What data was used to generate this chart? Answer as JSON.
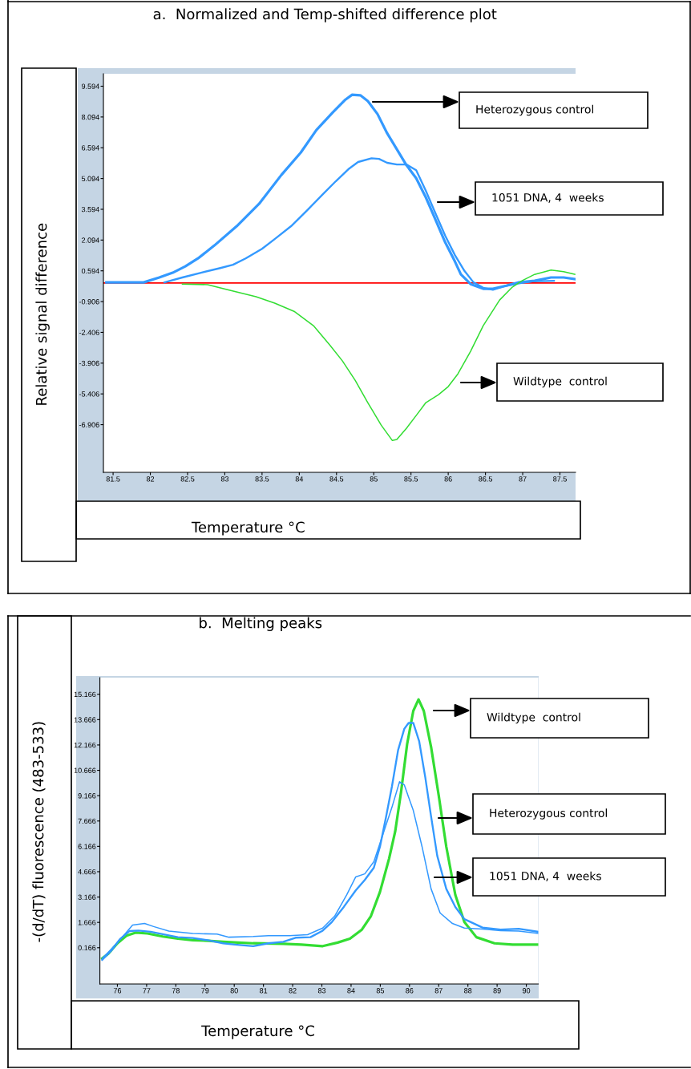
{
  "chart_data": [
    {
      "type": "line",
      "title": "a.  Normalized and Temp-shifted difference plot",
      "xlabel": "Temperature °C",
      "ylabel": "Relative signal difference",
      "xlim": [
        81.37,
        87.71
      ],
      "ylim": [
        -9.23,
        10.2
      ],
      "xticks": [
        81.5,
        82,
        82.5,
        83,
        83.5,
        84,
        84.5,
        85,
        85.5,
        86,
        86.5,
        87,
        87.5
      ],
      "yticks": [
        9.594,
        8.094,
        6.594,
        5.094,
        3.594,
        2.094,
        0.594,
        -0.906,
        -2.406,
        -3.906,
        -5.406,
        -6.906
      ],
      "grid": false,
      "ref_lines": [
        {
          "axis": "y",
          "value": 0,
          "color": "#ff0000"
        }
      ],
      "series": [
        {
          "color": "#3399ff",
          "x": [
            81.41,
            81.65,
            81.91,
            82.12,
            82.3,
            82.47,
            82.64,
            82.86,
            83.16,
            83.46,
            83.76,
            84.02,
            84.23,
            84.45,
            84.62,
            84.71,
            84.82,
            84.92,
            85.05,
            85.18,
            85.31,
            85.44,
            85.57,
            85.7,
            85.83,
            85.96,
            86.09,
            86.17,
            86.3,
            86.47,
            86.6,
            86.78,
            86.95,
            87.16,
            87.38,
            87.55,
            87.7
          ],
          "values": [
            0.03,
            0.03,
            0.03,
            0.27,
            0.5,
            0.81,
            1.2,
            1.83,
            2.77,
            3.86,
            5.27,
            6.36,
            7.46,
            8.32,
            8.94,
            9.18,
            9.15,
            8.87,
            8.24,
            7.3,
            6.52,
            5.74,
            5.11,
            4.17,
            3.08,
            1.98,
            1.05,
            0.42,
            -0.05,
            -0.28,
            -0.28,
            -0.13,
            0.03,
            0.11,
            0.27,
            0.27,
            0.19
          ]
        },
        {
          "color": "#3399ff",
          "x": [
            82.19,
            82.43,
            82.68,
            82.94,
            83.11,
            83.28,
            83.5,
            83.67,
            83.89,
            84.11,
            84.32,
            84.49,
            84.67,
            84.79,
            84.97,
            85.07,
            85.18,
            85.31,
            85.44,
            85.57,
            85.7,
            85.83,
            85.96,
            86.09,
            86.22,
            86.34,
            86.47,
            86.6,
            86.78,
            86.95,
            87.12,
            87.42
          ],
          "values": [
            0.03,
            0.27,
            0.5,
            0.73,
            0.89,
            1.2,
            1.67,
            2.14,
            2.77,
            3.56,
            4.34,
            4.96,
            5.58,
            5.9,
            6.08,
            6.05,
            5.86,
            5.78,
            5.78,
            5.5,
            4.49,
            3.39,
            2.3,
            1.36,
            0.58,
            0.03,
            -0.23,
            -0.33,
            -0.13,
            -0.02,
            0.08,
            0.11
          ]
        },
        {
          "color": "#33dd33",
          "x": [
            82.43,
            82.77,
            83.07,
            83.42,
            83.67,
            83.93,
            84.19,
            84.41,
            84.58,
            84.75,
            84.92,
            85.1,
            85.25,
            85.31,
            85.44,
            85.57,
            85.7,
            85.87,
            86.0,
            86.13,
            86.3,
            86.47,
            86.69,
            86.86,
            86.99,
            87.16,
            87.38,
            87.55,
            87.7
          ],
          "values": [
            -0.05,
            -0.08,
            -0.36,
            -0.67,
            -0.98,
            -1.38,
            -2.08,
            -3.02,
            -3.8,
            -4.74,
            -5.83,
            -6.93,
            -7.68,
            -7.63,
            -7.08,
            -6.46,
            -5.83,
            -5.44,
            -5.05,
            -4.43,
            -3.33,
            -2.08,
            -0.83,
            -0.2,
            0.11,
            0.42,
            0.63,
            0.55,
            0.42
          ]
        }
      ],
      "annotations": [
        "Heterozygous control",
        "1051 DNA, 4  weeks",
        "Wildtype  control"
      ]
    },
    {
      "type": "line",
      "title": "b.  Melting peaks",
      "xlabel": "Temperature °C",
      "ylabel": "-(d/dT) fluorescence (483-533)",
      "xlim": [
        75.4,
        90.41
      ],
      "ylim": [
        -1.98,
        16.15
      ],
      "xticks": [
        76,
        77,
        78,
        79,
        80,
        81,
        82,
        83,
        84,
        85,
        86,
        87,
        88,
        89,
        90
      ],
      "yticks": [
        15.166,
        13.666,
        12.166,
        10.666,
        9.166,
        7.666,
        6.166,
        4.666,
        3.166,
        1.666,
        0.166
      ],
      "grid": false,
      "series": [
        {
          "color": "#33dd33",
          "x": [
            75.48,
            75.69,
            76.0,
            76.31,
            76.62,
            77.03,
            77.55,
            78.07,
            78.58,
            79.1,
            79.62,
            80.13,
            80.65,
            81.68,
            82.3,
            83.03,
            83.54,
            83.96,
            84.37,
            84.68,
            84.99,
            85.3,
            85.51,
            85.71,
            85.92,
            86.13,
            86.31,
            86.49,
            86.74,
            87.0,
            87.26,
            87.57,
            87.88,
            88.29,
            88.91,
            89.53,
            90.41
          ],
          "values": [
            -0.46,
            -0.19,
            0.43,
            0.88,
            1.06,
            1.01,
            0.83,
            0.7,
            0.61,
            0.58,
            0.52,
            0.47,
            0.43,
            0.4,
            0.35,
            0.26,
            0.47,
            0.7,
            1.24,
            2.04,
            3.47,
            5.43,
            7.04,
            9.36,
            12.22,
            14.18,
            14.86,
            14.18,
            12.04,
            9.18,
            6.15,
            3.29,
            1.69,
            0.79,
            0.43,
            0.35,
            0.35
          ]
        },
        {
          "color": "#3399ff",
          "x": [
            75.48,
            75.79,
            76.1,
            76.41,
            76.72,
            77.14,
            77.55,
            78.07,
            78.58,
            79.1,
            79.62,
            80.03,
            80.65,
            81.17,
            81.68,
            82.1,
            82.61,
            83.03,
            83.34,
            83.75,
            84.16,
            84.47,
            84.78,
            84.99,
            85.2,
            85.4,
            85.61,
            85.82,
            85.97,
            86.13,
            86.33,
            86.54,
            86.74,
            86.95,
            87.26,
            87.57,
            87.88,
            88.5,
            89.12,
            89.74,
            90.41
          ],
          "values": [
            -0.55,
            -0.01,
            0.7,
            1.15,
            1.18,
            1.11,
            0.97,
            0.79,
            0.74,
            0.61,
            0.43,
            0.35,
            0.26,
            0.43,
            0.52,
            0.76,
            0.79,
            1.18,
            1.68,
            2.58,
            3.56,
            4.18,
            4.9,
            6.15,
            7.93,
            9.72,
            11.86,
            13.11,
            13.47,
            13.47,
            12.4,
            10.26,
            7.93,
            5.61,
            3.65,
            2.58,
            1.86,
            1.36,
            1.24,
            1.29,
            1.11
          ]
        },
        {
          "color": "#3399ff",
          "x": [
            75.48,
            75.79,
            76.21,
            76.52,
            76.93,
            77.24,
            77.76,
            78.58,
            79.41,
            79.82,
            80.65,
            81.17,
            81.89,
            82.51,
            83.03,
            83.44,
            83.85,
            84.16,
            84.47,
            84.78,
            85.09,
            85.4,
            85.66,
            85.82,
            86.13,
            86.43,
            86.74,
            87.05,
            87.47,
            87.88,
            88.5,
            89.12,
            89.74,
            90.41
          ],
          "values": [
            -0.46,
            0.08,
            0.88,
            1.51,
            1.6,
            1.42,
            1.15,
            1.01,
            0.97,
            0.79,
            0.83,
            0.88,
            0.88,
            0.94,
            1.33,
            2.04,
            3.29,
            4.36,
            4.54,
            5.26,
            6.87,
            8.48,
            9.99,
            9.81,
            8.29,
            6.15,
            3.65,
            2.22,
            1.6,
            1.33,
            1.27,
            1.18,
            1.15,
            1.01
          ]
        }
      ],
      "annotations": [
        "Wildtype  control",
        "Heterozygous control",
        "1051 DNA, 4  weeks"
      ]
    }
  ]
}
